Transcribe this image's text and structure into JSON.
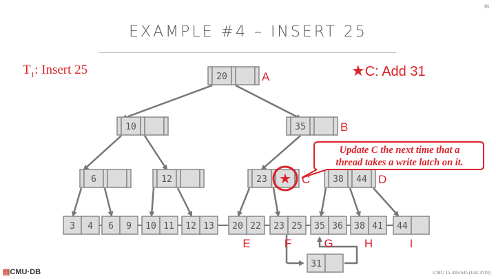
{
  "slide_number": "36",
  "title": "EXAMPLE #4 – INSERT 25",
  "txn": {
    "name": "T",
    "sub": "1",
    "text": ": Insert 25"
  },
  "star_note": {
    "star": "★",
    "text": "C: Add 31"
  },
  "callout": {
    "line1": "Update C the next time that a",
    "line2": "thread takes a write latch on it."
  },
  "nodes": {
    "A": {
      "label": "A",
      "keys": [
        "20",
        ""
      ]
    },
    "B": {
      "label": "B",
      "keys": [
        "35",
        ""
      ]
    },
    "L1a": {
      "keys": [
        "10",
        ""
      ]
    },
    "L2a": {
      "keys": [
        "6",
        ""
      ]
    },
    "L2b": {
      "keys": [
        "12",
        ""
      ]
    },
    "C": {
      "label": "C",
      "keys": [
        "23",
        "★"
      ]
    },
    "D": {
      "label": "D",
      "keys": [
        "38",
        "44"
      ]
    }
  },
  "leaves": [
    {
      "keys": [
        "3",
        "4"
      ],
      "label": ""
    },
    {
      "keys": [
        "6",
        "9"
      ],
      "label": ""
    },
    {
      "keys": [
        "10",
        "11"
      ],
      "label": ""
    },
    {
      "keys": [
        "12",
        "13"
      ],
      "label": ""
    },
    {
      "keys": [
        "20",
        "22"
      ],
      "label": "E"
    },
    {
      "keys": [
        "23",
        "25"
      ],
      "label": "F"
    },
    {
      "keys": [
        "35",
        "36"
      ],
      "label": "G"
    },
    {
      "keys": [
        "38",
        "41"
      ],
      "label": "H"
    },
    {
      "keys": [
        "44",
        ""
      ],
      "label": "I"
    }
  ],
  "overflow_leaf": {
    "keys": [
      "31",
      ""
    ]
  },
  "footer": {
    "logo_text": "CMU·DB",
    "course": "CMU 15-445/645 (Fall 2019)"
  },
  "colors": {
    "accent": "#d9232a",
    "node_fill": "#dcdcdc",
    "node_stroke": "#888888",
    "line": "#777777"
  }
}
